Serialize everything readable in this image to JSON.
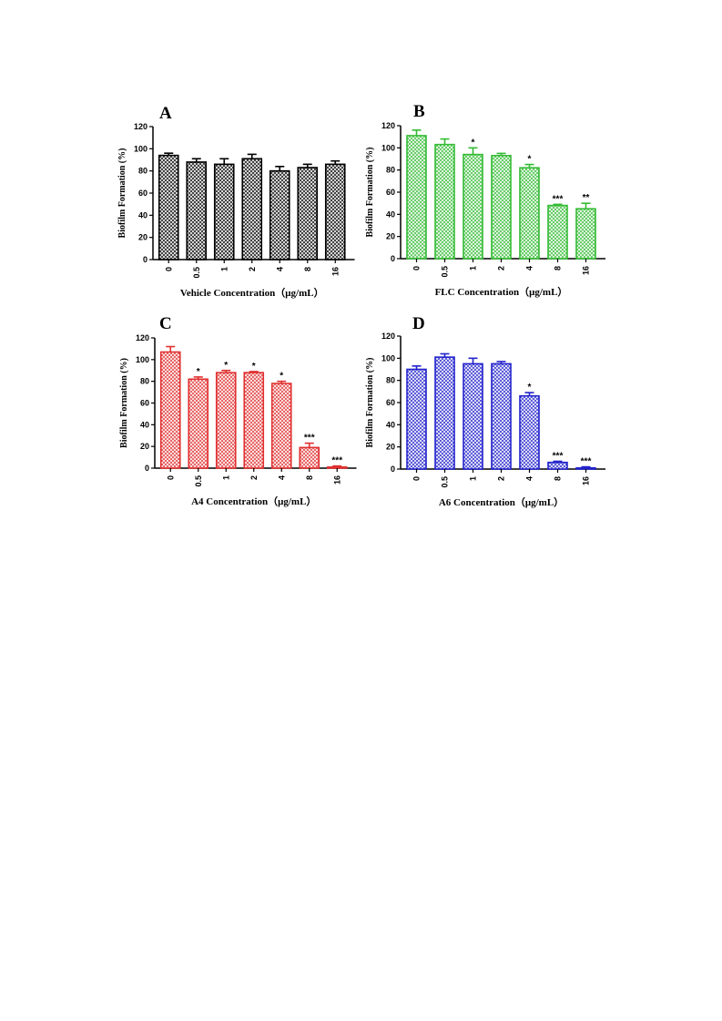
{
  "chart_data": [
    {
      "panel": "A",
      "type": "bar",
      "color": "#000000",
      "categories": [
        "0",
        "0.5",
        "1",
        "2",
        "4",
        "8",
        "16"
      ],
      "values": [
        94,
        88,
        86,
        91,
        80,
        83,
        86
      ],
      "errors": [
        2,
        3,
        5,
        4,
        4,
        3,
        3
      ],
      "significance": [
        "",
        "",
        "",
        "",
        "",
        "",
        ""
      ],
      "xlabel": "Vehicle Concentration（μg/mL）",
      "ylabel": "Biofilm Formation (%)",
      "ylim": [
        0,
        120
      ],
      "yticks": [
        "0",
        "20",
        "40",
        "60",
        "80",
        "100",
        "120"
      ]
    },
    {
      "panel": "B",
      "type": "bar",
      "color": "#33bb33",
      "categories": [
        "0",
        "0.5",
        "1",
        "2",
        "4",
        "8",
        "16"
      ],
      "values": [
        111,
        103,
        94,
        93,
        82,
        48,
        45
      ],
      "errors": [
        5,
        5,
        6,
        2,
        3,
        1,
        5
      ],
      "significance": [
        "",
        "",
        "*",
        "",
        "*",
        "***",
        "**"
      ],
      "xlabel": "FLC Concentration（μg/mL）",
      "ylabel": "Biofilm Formation (%)",
      "ylim": [
        0,
        120
      ],
      "yticks": [
        "0",
        "20",
        "40",
        "60",
        "80",
        "100",
        "120"
      ]
    },
    {
      "panel": "C",
      "type": "bar",
      "color": "#e03030",
      "categories": [
        "0",
        "0.5",
        "1",
        "2",
        "4",
        "8",
        "16"
      ],
      "values": [
        107,
        82,
        88,
        88,
        78,
        19,
        1
      ],
      "errors": [
        5,
        2,
        2,
        1,
        2,
        4,
        1
      ],
      "significance": [
        "",
        "*",
        "*",
        "*",
        "*",
        "***",
        "***"
      ],
      "xlabel": "A4 Concentration（μg/mL）",
      "ylabel": "Biofilm Formation (%)",
      "ylim": [
        0,
        120
      ],
      "yticks": [
        "0",
        "20",
        "40",
        "60",
        "80",
        "100",
        "120"
      ]
    },
    {
      "panel": "D",
      "type": "bar",
      "color": "#2222cc",
      "categories": [
        "0",
        "0.5",
        "1",
        "2",
        "4",
        "8",
        "16"
      ],
      "values": [
        90,
        101,
        95,
        95,
        66,
        6,
        1
      ],
      "errors": [
        3,
        3,
        5,
        2,
        3,
        1,
        1
      ],
      "significance": [
        "",
        "",
        "",
        "",
        "*",
        "***",
        "***"
      ],
      "xlabel": "A6 Concentration（μg/mL）",
      "ylabel": "Biofilm Formation (%)",
      "ylim": [
        0,
        120
      ],
      "yticks": [
        "0",
        "20",
        "40",
        "60",
        "80",
        "100",
        "120"
      ]
    }
  ]
}
